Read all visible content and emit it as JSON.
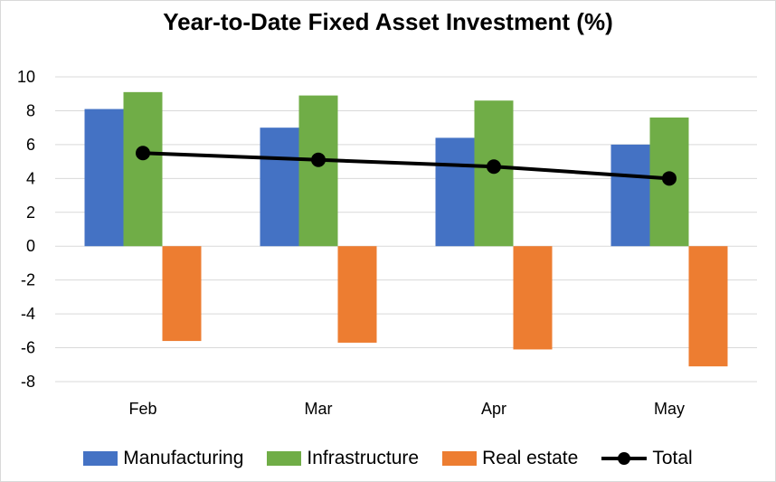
{
  "chart_data": {
    "type": "bar",
    "title": "Year-to-Date Fixed Asset Investment (%)",
    "categories": [
      "Feb",
      "Mar",
      "Apr",
      "May"
    ],
    "series": [
      {
        "name": "Manufacturing",
        "type": "bar",
        "color": "#4472C4",
        "values": [
          8.1,
          7.0,
          6.4,
          6.0
        ]
      },
      {
        "name": "Infrastructure",
        "type": "bar",
        "color": "#70AD47",
        "values": [
          9.1,
          8.9,
          8.6,
          7.6
        ]
      },
      {
        "name": "Real estate",
        "type": "bar",
        "color": "#ED7D31",
        "values": [
          -5.6,
          -5.7,
          -6.1,
          -7.1
        ]
      },
      {
        "name": "Total",
        "type": "line",
        "color": "#000000",
        "values": [
          5.5,
          5.1,
          4.7,
          4.0
        ]
      }
    ],
    "ylim": [
      -8,
      10
    ],
    "yticks": [
      "10",
      "8",
      "6",
      "4",
      "2",
      "0",
      "-2",
      "-4",
      "-6",
      "-8"
    ],
    "grid": true,
    "legend_position": "bottom"
  }
}
